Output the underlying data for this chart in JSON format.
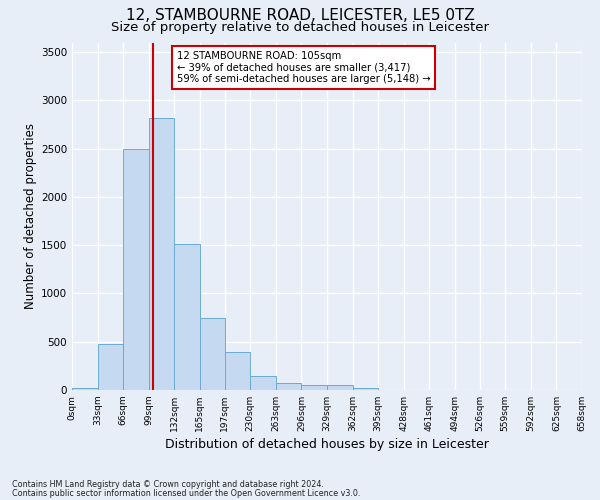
{
  "title1": "12, STAMBOURNE ROAD, LEICESTER, LE5 0TZ",
  "title2": "Size of property relative to detached houses in Leicester",
  "xlabel": "Distribution of detached houses by size in Leicester",
  "ylabel": "Number of detached properties",
  "footnote1": "Contains HM Land Registry data © Crown copyright and database right 2024.",
  "footnote2": "Contains public sector information licensed under the Open Government Licence v3.0.",
  "bin_edges": [
    0,
    33,
    66,
    99,
    132,
    165,
    197,
    230,
    263,
    296,
    329,
    362,
    395,
    428,
    461,
    494,
    526,
    559,
    592,
    625,
    658
  ],
  "bar_heights": [
    20,
    480,
    2500,
    2820,
    1510,
    750,
    390,
    145,
    75,
    50,
    50,
    20,
    5,
    3,
    0,
    0,
    0,
    0,
    0,
    0
  ],
  "bar_color": "#c5d9f0",
  "bar_edgecolor": "#6aaad4",
  "vline_x": 105,
  "vline_color": "#cc0000",
  "annotation_line1": "12 STAMBOURNE ROAD: 105sqm",
  "annotation_line2": "← 39% of detached houses are smaller (3,417)",
  "annotation_line3": "59% of semi-detached houses are larger (5,148) →",
  "annotation_box_color": "#cc0000",
  "ylim": [
    0,
    3600
  ],
  "yticks": [
    0,
    500,
    1000,
    1500,
    2000,
    2500,
    3000,
    3500
  ],
  "background_color": "#e8eef8",
  "grid_color": "#ffffff",
  "title1_fontsize": 11,
  "title2_fontsize": 9.5,
  "xlabel_fontsize": 9,
  "ylabel_fontsize": 8.5
}
